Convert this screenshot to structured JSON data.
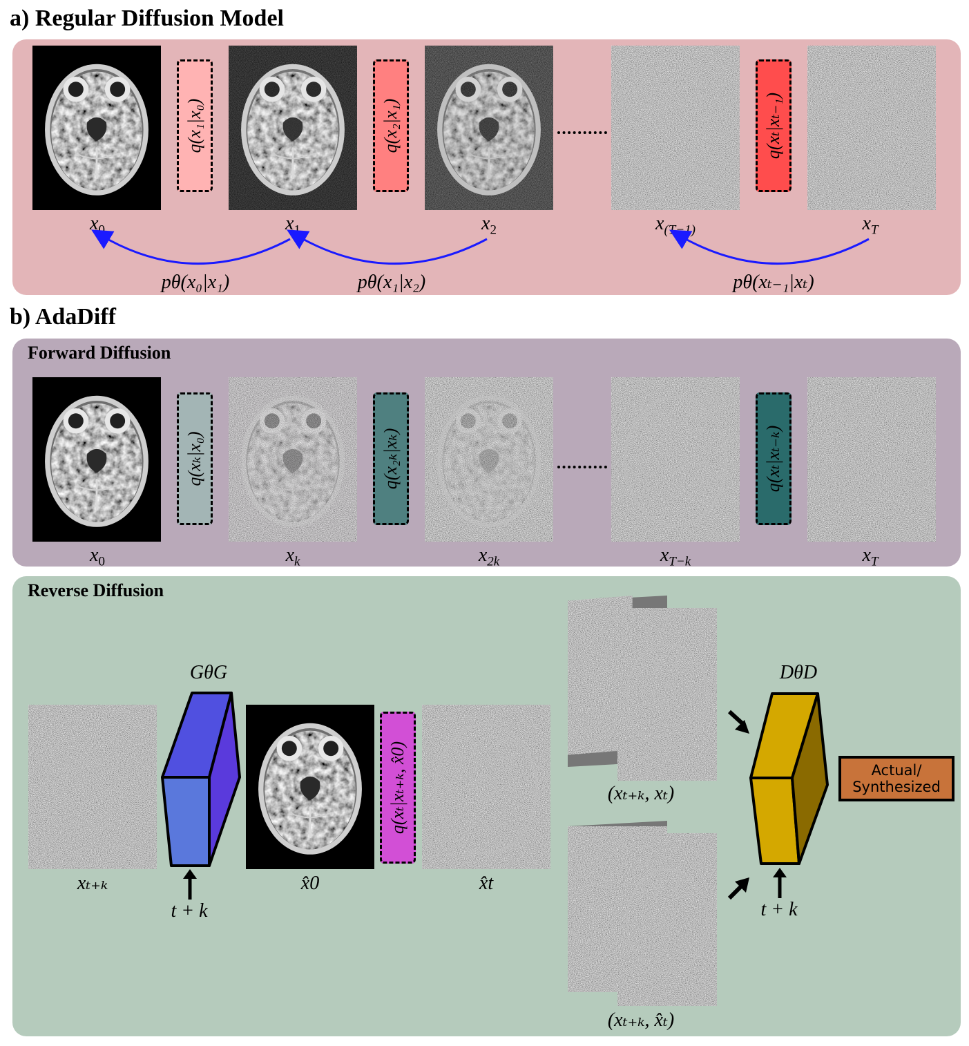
{
  "section_a": {
    "title": "a) Regular Diffusion Model",
    "labels": [
      "x",
      "x",
      "x",
      "x",
      "x"
    ],
    "label_subs": [
      "0",
      "1",
      "2",
      "(T−1)",
      "T"
    ],
    "q_boxes": [
      {
        "text": "q(x₁|x₀)",
        "color": "#ffb3b3"
      },
      {
        "text": "q(x₂|x₁)",
        "color": "#ff8080"
      },
      {
        "text": "q(xₜ|xₜ₋₁)",
        "color": "#ff4d4d"
      }
    ],
    "reverse_labels": [
      "pθ(x₀|x₁)",
      "pθ(x₁|x₂)",
      "pθ(xₜ₋₁|xₜ)"
    ],
    "panel_color": "#e3b5b8",
    "arrow_color": "#1a1aff"
  },
  "section_b": {
    "title": "b) AdaDiff",
    "forward": {
      "title": "Forward Diffusion",
      "panel_color": "#b9a9b9",
      "labels": [
        "x",
        "x",
        "x",
        "x",
        "x"
      ],
      "label_subs": [
        "0",
        "k",
        "2k",
        "T−k",
        "T"
      ],
      "q_boxes": [
        {
          "text": "q(xₖ|x₀)",
          "color": "#a3b5b5"
        },
        {
          "text": "q(x₂ₖ|xₖ)",
          "color": "#4f8080"
        },
        {
          "text": "q(xₜ|xₜ₋ₖ)",
          "color": "#2a6b6b"
        }
      ]
    },
    "reverse": {
      "title": "Reverse Diffusion",
      "panel_color": "#b5cbbc",
      "input_label": "xₜ₊ₖ",
      "generator_label": "GθG",
      "generator_time": "t + k",
      "x0hat_label": "x̂0",
      "q_box": {
        "text": "q(xₜ|xₜ₊ₖ, x̂0)",
        "color": "#d24fd6"
      },
      "xthat_label": "x̂t",
      "pair1_label": "(xₜ₊ₖ, xₜ)",
      "pair2_label": "(xₜ₊ₖ, x̂ₜ)",
      "discriminator_label": "DθD",
      "discriminator_time": "t + k",
      "output_line1": "Actual/",
      "output_line2": "Synthesized",
      "output_color": "#c8733a",
      "generator_color": "#5050e0",
      "discriminator_color": "#d4a800"
    }
  }
}
